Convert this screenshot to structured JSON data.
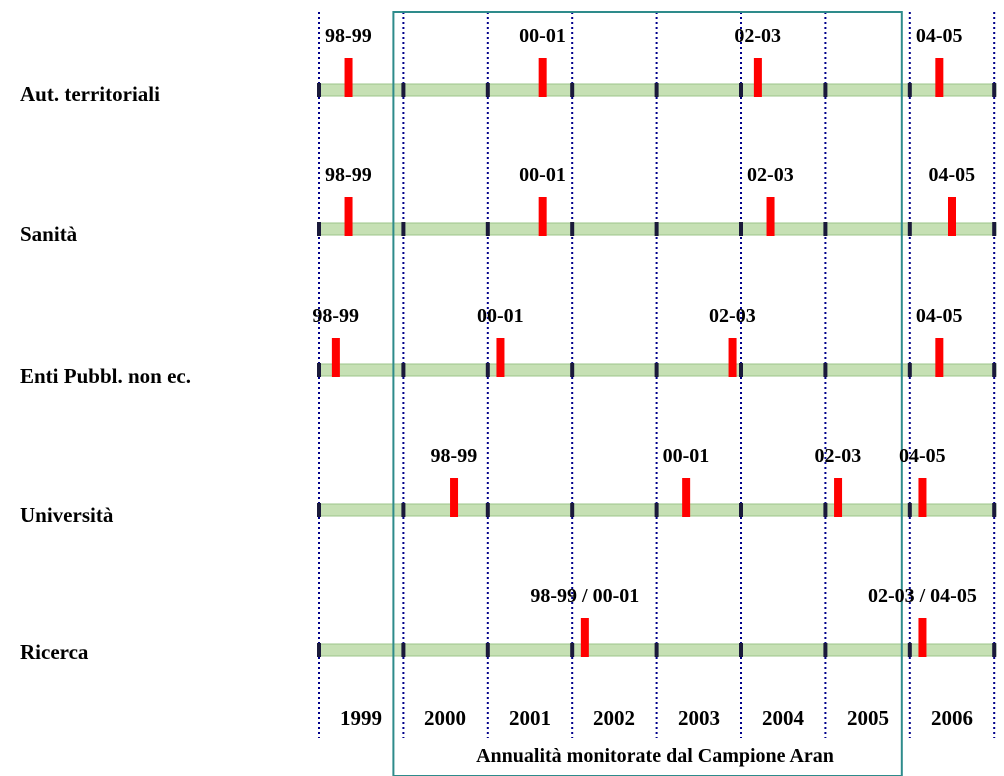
{
  "years": [
    "1999",
    "2000",
    "2001",
    "2002",
    "2003",
    "2004",
    "2005",
    "2006"
  ],
  "caption": "Annualità monitorate dal Campione Aran",
  "sectors": [
    {
      "name": "Aut. territoriali",
      "markers": [
        {
          "label": "98-99",
          "at": 1999.35
        },
        {
          "label": "00-01",
          "at": 2001.65
        },
        {
          "label": "02-03",
          "at": 2004.2
        },
        {
          "label": "04-05",
          "at": 2006.35
        }
      ]
    },
    {
      "name": "Sanità",
      "markers": [
        {
          "label": "98-99",
          "at": 1999.35
        },
        {
          "label": "00-01",
          "at": 2001.65
        },
        {
          "label": "02-03",
          "at": 2004.35
        },
        {
          "label": "04-05",
          "at": 2006.5
        }
      ]
    },
    {
      "name": "Enti Pubbl. non ec.",
      "markers": [
        {
          "label": "98-99",
          "at": 1999.2
        },
        {
          "label": "00-01",
          "at": 2001.15
        },
        {
          "label": "02-03",
          "at": 2003.9
        },
        {
          "label": "04-05",
          "at": 2006.35
        }
      ]
    },
    {
      "name": "Università",
      "markers": [
        {
          "label": "98-99",
          "at": 2000.6
        },
        {
          "label": "00-01",
          "at": 2003.35
        },
        {
          "label": "02-03",
          "at": 2005.15
        },
        {
          "label": "04-05",
          "at": 2006.15
        }
      ]
    },
    {
      "name": "Ricerca",
      "markers": [
        {
          "label": "98-99 / 00-01",
          "at": 2002.15
        },
        {
          "label": "02-03 / 04-05",
          "at": 2006.15
        }
      ]
    }
  ],
  "colors": {
    "bar": "#c6e0b4",
    "bar_edge": "#9cc58a",
    "marker": "#ff0000",
    "grid": "#00008b",
    "box": "#2e8b8b"
  }
}
